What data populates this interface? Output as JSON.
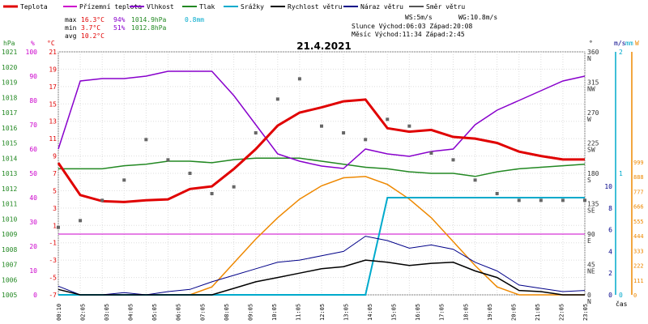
{
  "chart_data": {
    "type": "line",
    "title": "21.4.2021",
    "legend": [
      {
        "name": "Teplota",
        "color": "#e00000"
      },
      {
        "name": "Přízemní teplota",
        "color": "#cc00cc"
      },
      {
        "name": "Vlhkost",
        "color": "#8800cc"
      },
      {
        "name": "Tlak",
        "color": "#228822"
      },
      {
        "name": "Srážky",
        "color": "#00aacc"
      },
      {
        "name": "Rychlost větru",
        "color": "#000000"
      },
      {
        "name": "Náraz větru",
        "color": "#000088"
      },
      {
        "name": "Směr větru",
        "color": "#555555"
      }
    ],
    "stats": {
      "max_label": "max",
      "max_temp": "16.3°C",
      "max_hum": "94%",
      "max_press": "1014.9hPa",
      "max_rain": "0.8mm",
      "min_label": "min",
      "min_temp": "3.7°C",
      "min_hum": "51%",
      "min_press": "1012.8hPa",
      "avg_label": "avg",
      "avg_temp": "10.2°C",
      "ws": "WS:5m/s",
      "wg": "WG:10.8m/s",
      "sun": "Slunce Východ:06:03  Západ:20:08",
      "moon": "Měsíc  Východ:11:34  Západ:2:45"
    },
    "axes": {
      "hpa_unit": "hPa",
      "hpa_ticks": [
        "1021",
        "1020",
        "1019",
        "1018",
        "1017",
        "1016",
        "1015",
        "1014",
        "1013",
        "1012",
        "1011",
        "1010",
        "1009",
        "1008",
        "1007",
        "1006",
        "1005"
      ],
      "pct_unit": "%",
      "pct_ticks": [
        "100",
        "90",
        "80",
        "70",
        "60",
        "50",
        "40",
        "30",
        "20",
        "10",
        "0"
      ],
      "temp_unit": "°C",
      "temp_ticks": [
        "21",
        "19",
        "17",
        "15",
        "13",
        "11",
        "9",
        "7",
        "5",
        "3",
        "1",
        "-1",
        "-3",
        "-5",
        "-7"
      ],
      "dir_unit": "°",
      "dir_ticks": [
        {
          "v": "360",
          "l": "N"
        },
        {
          "v": "315",
          "l": "NW"
        },
        {
          "v": "270",
          "l": "W"
        },
        {
          "v": "225",
          "l": "SW"
        },
        {
          "v": "180",
          "l": "S"
        },
        {
          "v": "135",
          "l": "SE"
        },
        {
          "v": "90",
          "l": "E"
        },
        {
          "v": "45",
          "l": "NE"
        },
        {
          "v": "0",
          "l": "N"
        }
      ],
      "wind_unit": "m/s",
      "wind_ticks": [
        "10",
        "8",
        "6",
        "4",
        "2",
        "0"
      ],
      "rain_unit": "mm",
      "rain_ticks": [
        "2",
        "1",
        "0"
      ],
      "sun_unit": "W",
      "sun_ticks": [
        "999",
        "888",
        "777",
        "666",
        "555",
        "444",
        "333",
        "222",
        "111",
        "0"
      ],
      "time_label": "čas",
      "time_ticks": [
        "00:10",
        "02:05",
        "03:05",
        "04:05",
        "05:05",
        "06:05",
        "07:05",
        "08:05",
        "09:05",
        "10:05",
        "11:05",
        "12:05",
        "13:05",
        "14:05",
        "15:05",
        "16:05",
        "17:05",
        "18:05",
        "19:05",
        "20:05",
        "21:05",
        "22:05",
        "23:05"
      ]
    },
    "hours": [
      0,
      1,
      2,
      3,
      4,
      5,
      6,
      7,
      8,
      9,
      10,
      11,
      12,
      13,
      14,
      15,
      16,
      17,
      18,
      19,
      20,
      21,
      22,
      23,
      24
    ],
    "temperature": [
      8.2,
      4.5,
      3.8,
      3.7,
      3.9,
      4.0,
      5.2,
      5.5,
      7.5,
      9.8,
      12.5,
      14.0,
      14.6,
      15.3,
      15.5,
      12.2,
      11.8,
      12.0,
      11.2,
      11.0,
      10.5,
      9.5,
      9.0,
      8.6,
      8.6
    ],
    "humidity": [
      60,
      88,
      89,
      89,
      90,
      92,
      92,
      92,
      82,
      70,
      58,
      55,
      53,
      52,
      60,
      58,
      57,
      59,
      60,
      70,
      76,
      80,
      84,
      88,
      90
    ],
    "pressure": [
      1013.3,
      1013.3,
      1013.3,
      1013.5,
      1013.6,
      1013.8,
      1013.8,
      1013.7,
      1013.9,
      1014.0,
      1014.0,
      1014.0,
      1013.8,
      1013.6,
      1013.4,
      1013.3,
      1013.1,
      1013.0,
      1013.0,
      1012.8,
      1013.1,
      1013.3,
      1013.4,
      1013.5,
      1013.6
    ],
    "rain_total": [
      0,
      0,
      0,
      0,
      0,
      0,
      0,
      0,
      0,
      0,
      0,
      0,
      0,
      0,
      0,
      0.8,
      0.8,
      0.8,
      0.8,
      0.8,
      0.8,
      0.8,
      0.8,
      0.8,
      0.8
    ],
    "wind_speed": [
      0.5,
      0,
      0,
      0,
      0,
      0,
      0,
      0,
      0.6,
      1.2,
      1.6,
      2.0,
      2.4,
      2.6,
      3.2,
      3.0,
      2.7,
      2.9,
      3.0,
      2.2,
      1.6,
      0.4,
      0.3,
      0,
      0
    ],
    "wind_gust": [
      0.8,
      0,
      0,
      0.2,
      0,
      0.3,
      0.5,
      1.2,
      1.8,
      2.4,
      3.0,
      3.2,
      3.6,
      4.0,
      5.4,
      5.0,
      4.3,
      4.6,
      4.2,
      3.0,
      2.2,
      0.9,
      0.6,
      0.3,
      0.4
    ],
    "solar_radiation": [
      0,
      0,
      0,
      0,
      0,
      0,
      0,
      60,
      240,
      420,
      580,
      720,
      820,
      880,
      890,
      830,
      720,
      580,
      400,
      220,
      60,
      0,
      0,
      0,
      0
    ],
    "wind_direction": [
      100,
      110,
      140,
      170,
      230,
      200,
      180,
      150,
      160,
      240,
      290,
      320,
      250,
      240,
      230,
      260,
      250,
      210,
      200,
      170,
      150,
      140,
      140,
      140,
      140
    ]
  }
}
